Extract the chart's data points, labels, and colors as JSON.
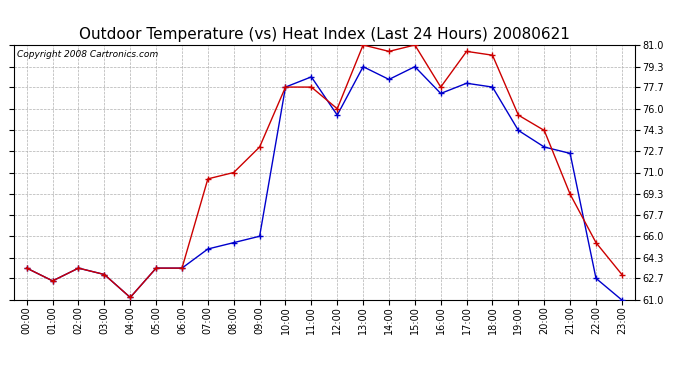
{
  "title": "Outdoor Temperature (vs) Heat Index (Last 24 Hours) 20080621",
  "copyright": "Copyright 2008 Cartronics.com",
  "hours": [
    "00:00",
    "01:00",
    "02:00",
    "03:00",
    "04:00",
    "05:00",
    "06:00",
    "07:00",
    "08:00",
    "09:00",
    "10:00",
    "11:00",
    "12:00",
    "13:00",
    "14:00",
    "15:00",
    "16:00",
    "17:00",
    "18:00",
    "19:00",
    "20:00",
    "21:00",
    "22:00",
    "23:00"
  ],
  "temp": [
    63.5,
    62.5,
    63.5,
    63.0,
    61.2,
    63.5,
    63.5,
    70.5,
    71.0,
    73.0,
    77.7,
    77.7,
    76.0,
    81.0,
    80.5,
    81.0,
    77.7,
    80.5,
    80.2,
    75.5,
    74.3,
    69.3,
    65.5,
    63.0
  ],
  "heat_index": [
    63.5,
    62.5,
    63.5,
    63.0,
    61.2,
    63.5,
    63.5,
    65.0,
    65.5,
    66.0,
    77.7,
    78.5,
    75.5,
    79.3,
    78.3,
    79.3,
    77.2,
    78.0,
    77.7,
    74.3,
    73.0,
    72.5,
    62.7,
    61.0
  ],
  "temp_color": "#cc0000",
  "heat_index_color": "#0000cc",
  "ylim_min": 61.0,
  "ylim_max": 81.0,
  "yticks": [
    61.0,
    62.7,
    64.3,
    66.0,
    67.7,
    69.3,
    71.0,
    72.7,
    74.3,
    76.0,
    77.7,
    79.3,
    81.0
  ],
  "background_color": "#ffffff",
  "plot_bg_color": "#ffffff",
  "grid_color": "#b0b0b0",
  "title_fontsize": 11,
  "copyright_fontsize": 6.5,
  "figwidth": 6.9,
  "figheight": 3.75,
  "dpi": 100
}
